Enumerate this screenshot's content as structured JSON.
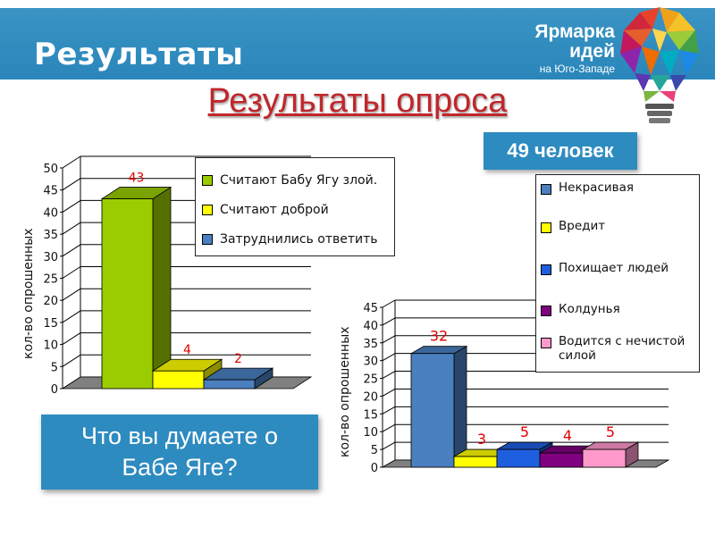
{
  "header": {
    "title": "Результаты"
  },
  "brand": {
    "line1": "Ярмарка",
    "line2": "идей",
    "line3": "на Юго-Западе"
  },
  "main_title": "Результаты опроса",
  "badge": "49 человек",
  "question": {
    "line1": "Что вы думаете о",
    "line2": "Бабе Яге?"
  },
  "colors": {
    "header": "#2a86ba",
    "title": "#c0262b",
    "badge": "#2e8bc0"
  },
  "chart_data": [
    {
      "type": "bar",
      "ylabel": "кол-во опрошенных",
      "ylim": [
        0,
        50
      ],
      "yticks": [
        0,
        5,
        10,
        15,
        20,
        25,
        30,
        35,
        40,
        45,
        50
      ],
      "categories": [
        "Считают Бабу Ягу злой.",
        "Считают доброй",
        "Затруднились ответить"
      ],
      "values": [
        43,
        4,
        2
      ],
      "colors": [
        "#9acc00",
        "#ffff00",
        "#4a7fc0"
      ],
      "data_labels": [
        "43",
        "4",
        "2"
      ],
      "legend": [
        "Считают Бабу Ягу злой.",
        "Считают доброй",
        "Затруднились ответить"
      ],
      "grid": true,
      "legend_position": "top-right"
    },
    {
      "type": "bar",
      "ylabel": "кол-во опрошенных",
      "ylim": [
        0,
        45
      ],
      "yticks": [
        0,
        5,
        10,
        15,
        20,
        25,
        30,
        35,
        40,
        45
      ],
      "categories": [
        "Некрасивая",
        "Вредит",
        "Похищает людей",
        "Колдунья",
        "Водится с нечистой силой"
      ],
      "values": [
        32,
        3,
        5,
        4,
        5
      ],
      "colors": [
        "#4a7fc0",
        "#ffff00",
        "#1e5fe0",
        "#800080",
        "#ff99cc"
      ],
      "data_labels": [
        "32",
        "3",
        "5",
        "4",
        "5"
      ],
      "legend": [
        "Некрасивая",
        "Вредит",
        "Похищает людей",
        "Колдунья",
        "Водится с нечистой силой"
      ],
      "grid": true,
      "legend_position": "right"
    }
  ]
}
